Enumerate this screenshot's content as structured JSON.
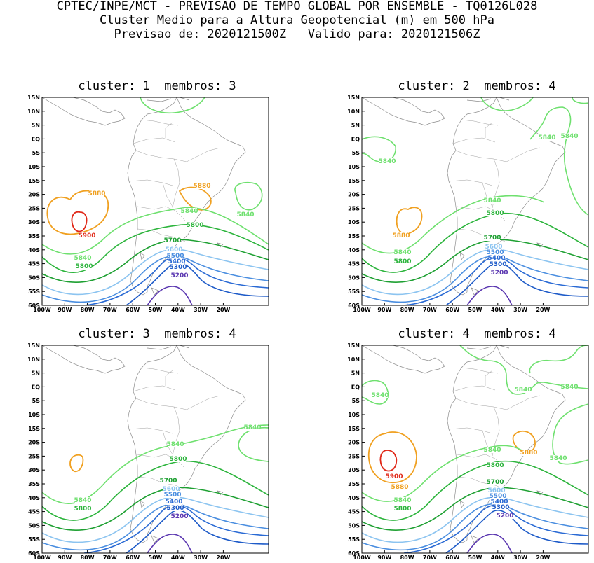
{
  "header": {
    "line1": "CPTEC/INPE/MCT - PREVISAO DE TEMPO GLOBAL POR ENSEMBLE - TQ0126L028",
    "line2": "Cluster Medio para a Altura Geopotencial (m) em 500 hPa",
    "line3": "Previsao de: 2020121500Z   Valido para: 2020121506Z"
  },
  "panels": [
    {
      "title": "cluster: 1  membros: 3"
    },
    {
      "title": "cluster: 2  membros: 4"
    },
    {
      "title": "cluster: 3  membros: 4"
    },
    {
      "title": "cluster: 4  membros: 4"
    }
  ],
  "lat_ticks": [
    "15N",
    "10N",
    "5N",
    "EQ",
    "5S",
    "10S",
    "15S",
    "20S",
    "25S",
    "30S",
    "35S",
    "40S",
    "45S",
    "50S",
    "55S",
    "60S"
  ],
  "lon_ticks": [
    "100W",
    "90W",
    "80W",
    "70W",
    "60W",
    "50W",
    "40W",
    "30W",
    "20W"
  ],
  "contour_colors": {
    "5200": "#5a36b0",
    "5300": "#1e5bc8",
    "5400": "#2a6ad4",
    "5500": "#4a8ee0",
    "5600": "#8cc4f0",
    "5700": "#1ea032",
    "5800": "#2cb43c",
    "5840": "#6ee06e",
    "5880": "#f0a020",
    "5900": "#e02818"
  },
  "contour_labels": [
    [
      [
        "5880",
        "5880"
      ],
      [
        "5900"
      ],
      [
        "5840",
        "5840",
        "5840"
      ],
      [
        "5800",
        "5800"
      ],
      [
        "5700"
      ],
      [
        "5600"
      ],
      [
        "5500"
      ],
      [
        "5400"
      ],
      [
        "5300"
      ],
      [
        "5200"
      ]
    ],
    [
      [
        "5840",
        "5840",
        "5840",
        "5840"
      ],
      [
        "5880"
      ],
      [
        "5800",
        "5800"
      ],
      [
        "5700"
      ],
      [
        "5600"
      ],
      [
        "5500"
      ],
      [
        "5400"
      ],
      [
        "5300"
      ],
      [
        "5200"
      ]
    ],
    [
      [
        "5840",
        "5840",
        "5840"
      ],
      [
        "5800",
        "5800"
      ],
      [
        "5700"
      ],
      [
        "5600"
      ],
      [
        "5500"
      ],
      [
        "5400"
      ],
      [
        "5300"
      ],
      [
        "5200"
      ]
    ],
    [
      [
        "5840",
        "5840",
        "5840",
        "5840",
        "5840",
        "5840"
      ],
      [
        "5880",
        "5880"
      ],
      [
        "5900"
      ],
      [
        "5800",
        "5800"
      ],
      [
        "5700"
      ],
      [
        "5600"
      ],
      [
        "5500"
      ],
      [
        "5400"
      ],
      [
        "5300"
      ],
      [
        "5200"
      ]
    ]
  ]
}
